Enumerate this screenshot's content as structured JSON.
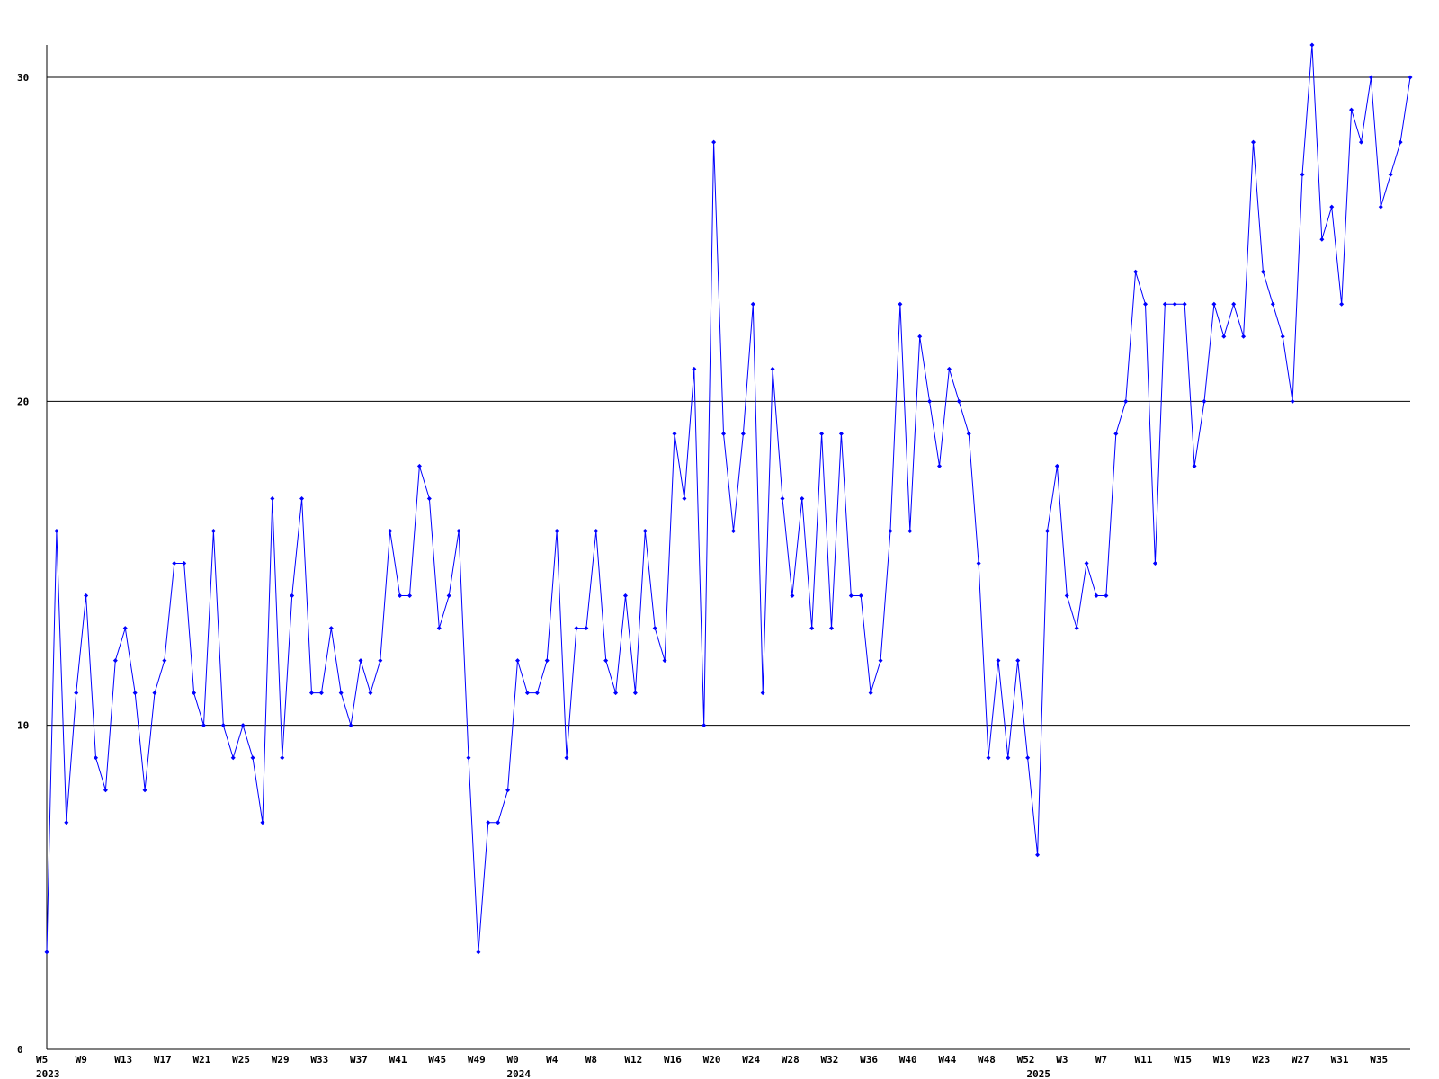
{
  "colors": {
    "series": "#0000ff",
    "grid": "#000000",
    "axis": "#000000",
    "background": "#ffffff"
  },
  "chart_data": {
    "type": "line",
    "title": "",
    "xlabel": "",
    "ylabel": "",
    "ylim": [
      0,
      31
    ],
    "yticks": [
      0,
      10,
      20,
      30
    ],
    "grid": "horizontal",
    "legend": "none",
    "x_tick_labels": [
      "W5",
      "W9",
      "W13",
      "W17",
      "W21",
      "W25",
      "W29",
      "W33",
      "W37",
      "W41",
      "W45",
      "W49",
      "W0",
      "W4",
      "W8",
      "W12",
      "W16",
      "W20",
      "W24",
      "W28",
      "W32",
      "W36",
      "W40",
      "W44",
      "W48",
      "W52",
      "W3",
      "W7",
      "W11",
      "W15",
      "W19",
      "W23",
      "W27",
      "W31",
      "W35"
    ],
    "x_tick_index": [
      0,
      4,
      8,
      12,
      16,
      20,
      24,
      28,
      32,
      36,
      40,
      44,
      48,
      52,
      56,
      60,
      64,
      68,
      72,
      76,
      80,
      84,
      88,
      92,
      96,
      100,
      104,
      108,
      112,
      116,
      120,
      124,
      128,
      132,
      136
    ],
    "year_labels": [
      {
        "label": "2023",
        "index": 0
      },
      {
        "label": "2024",
        "index": 48
      },
      {
        "label": "2025",
        "index": 101
      }
    ],
    "series": [
      {
        "values": [
          3,
          16,
          7,
          11,
          14,
          9,
          8,
          12,
          13,
          11,
          8,
          11,
          12,
          15,
          15,
          11,
          10,
          16,
          10,
          9,
          10,
          9,
          7,
          17,
          9,
          14,
          17,
          11,
          11,
          13,
          11,
          10,
          12,
          11,
          12,
          16,
          14,
          14,
          18,
          17,
          13,
          14,
          16,
          9,
          3,
          7,
          7,
          8,
          12,
          11,
          11,
          12,
          16,
          9,
          13,
          13,
          16,
          12,
          11,
          14,
          11,
          16,
          13,
          12,
          19,
          17,
          21,
          10,
          28,
          19,
          16,
          19,
          23,
          11,
          21,
          17,
          14,
          17,
          13,
          19,
          13,
          19,
          14,
          14,
          11,
          12,
          16,
          23,
          16,
          22,
          20,
          18,
          21,
          20,
          19,
          15,
          9,
          12,
          9,
          12,
          9,
          6,
          16,
          18,
          14,
          13,
          15,
          14,
          14,
          19,
          20,
          24,
          23,
          15,
          23,
          23,
          23,
          18,
          20,
          23,
          22,
          23,
          22,
          28,
          24,
          23,
          22,
          20,
          27,
          31,
          25,
          26,
          23,
          29,
          28,
          30,
          26,
          27,
          28,
          30
        ]
      }
    ]
  }
}
